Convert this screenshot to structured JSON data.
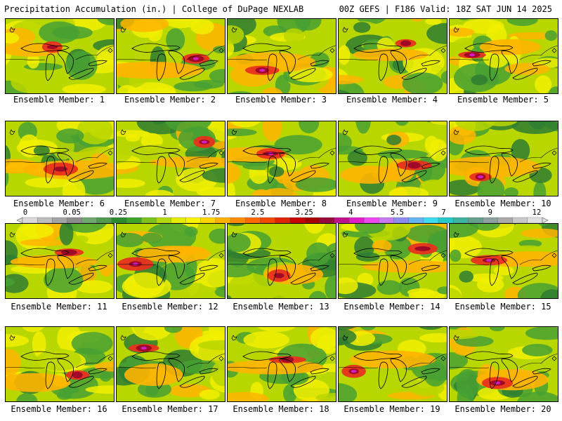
{
  "header": {
    "left_title": "Precipitation Accumulation (in.) | College of DuPage NEXLAB",
    "right_title": "00Z GEFS | F186 Valid: 18Z SAT JUN 14 2025"
  },
  "members": [
    {
      "label": "Ensemble Member: 1"
    },
    {
      "label": "Ensemble Member: 2"
    },
    {
      "label": "Ensemble Member: 3"
    },
    {
      "label": "Ensemble Member: 4"
    },
    {
      "label": "Ensemble Member: 5"
    },
    {
      "label": "Ensemble Member: 6"
    },
    {
      "label": "Ensemble Member: 7"
    },
    {
      "label": "Ensemble Member: 8"
    },
    {
      "label": "Ensemble Member: 9"
    },
    {
      "label": "Ensemble Member: 10"
    },
    {
      "label": "Ensemble Member: 11"
    },
    {
      "label": "Ensemble Member: 12"
    },
    {
      "label": "Ensemble Member: 13"
    },
    {
      "label": "Ensemble Member: 14"
    },
    {
      "label": "Ensemble Member: 15"
    },
    {
      "label": "Ensemble Member: 16"
    },
    {
      "label": "Ensemble Member: 17"
    },
    {
      "label": "Ensemble Member: 18"
    },
    {
      "label": "Ensemble Member: 19"
    },
    {
      "label": "Ensemble Member: 20"
    }
  ],
  "colorbar": {
    "tick_labels": [
      "0",
      "0.05",
      "0.25",
      "1",
      "1.75",
      "2.5",
      "3.25",
      "4",
      "5.5",
      "7",
      "9",
      "12"
    ],
    "colors": [
      "#d9d9d9",
      "#bdbdbd",
      "#a3a3a3",
      "#8c8c8c",
      "#6fa86f",
      "#4f9a4f",
      "#2f8a2f",
      "#3fa52a",
      "#7cc21e",
      "#b4d80f",
      "#e6ec00",
      "#fff400",
      "#ffd400",
      "#ffb000",
      "#ff8c00",
      "#ff6a00",
      "#f44800",
      "#e02400",
      "#c80000",
      "#a80000",
      "#960a3c",
      "#c0128c",
      "#e01ec8",
      "#f046f0",
      "#c878f0",
      "#8c8cf0",
      "#64b4f0",
      "#3cdcf0",
      "#28c8c8",
      "#3cb4a0",
      "#64a08c",
      "#8ca0a0",
      "#aaaaaa",
      "#c8c8c8",
      "#e0e0e0"
    ]
  },
  "precip_colors": {
    "light": "#b8d600",
    "yellow": "#f2f000",
    "orange": "#ffb400",
    "red": "#e8321e",
    "darkred": "#a00a28",
    "magenta": "#d21ec8",
    "green": "#46a032",
    "darkgreen": "#2e7d32"
  }
}
